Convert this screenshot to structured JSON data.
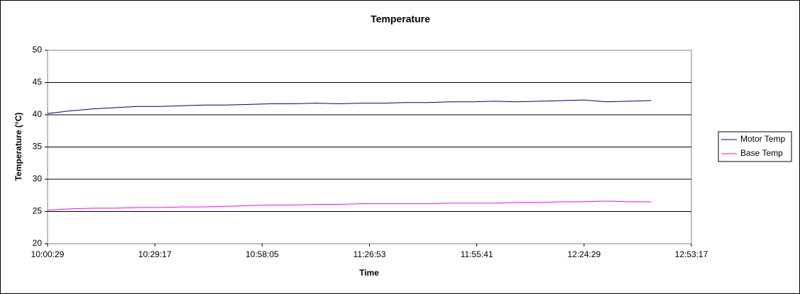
{
  "chart_data": {
    "type": "line",
    "title": "Temperature",
    "x_label": "Time",
    "y_label": "Temperature (°C)",
    "x": [
      "10:00:29",
      "10:06:29",
      "10:12:29",
      "10:18:29",
      "10:24:29",
      "10:30:29",
      "10:36:29",
      "10:42:29",
      "10:48:29",
      "10:54:29",
      "11:00:29",
      "11:06:29",
      "11:12:29",
      "11:18:29",
      "11:24:29",
      "11:30:29",
      "11:36:29",
      "11:42:29",
      "11:48:29",
      "11:54:29",
      "12:00:29",
      "12:06:29",
      "12:12:29",
      "12:18:29",
      "12:24:29",
      "12:30:29",
      "12:36:29",
      "12:42:29"
    ],
    "series": [
      {
        "name": "Motor Temp",
        "color": "#000080",
        "values": [
          40.2,
          40.6,
          40.9,
          41.1,
          41.3,
          41.3,
          41.4,
          41.5,
          41.5,
          41.6,
          41.7,
          41.7,
          41.8,
          41.7,
          41.8,
          41.8,
          41.9,
          41.9,
          42.0,
          42.0,
          42.1,
          42.0,
          42.1,
          42.2,
          42.3,
          42.0,
          42.1,
          42.2
        ]
      },
      {
        "name": "Base Temp",
        "color": "#ff00ff",
        "values": [
          25.2,
          25.4,
          25.5,
          25.5,
          25.6,
          25.6,
          25.7,
          25.7,
          25.8,
          25.9,
          26.0,
          26.0,
          26.1,
          26.1,
          26.2,
          26.2,
          26.2,
          26.2,
          26.3,
          26.3,
          26.3,
          26.4,
          26.4,
          26.5,
          26.5,
          26.6,
          26.5,
          26.5
        ]
      }
    ],
    "xlim": [
      "10:00:29",
      "12:53:17"
    ],
    "xticks": [
      "10:00:29",
      "10:29:17",
      "10:58:05",
      "11:26:53",
      "11:55:41",
      "12:24:29",
      "12:53:17"
    ],
    "ylim": [
      20,
      50
    ],
    "yticks": [
      20,
      25,
      30,
      35,
      40,
      45,
      50
    ],
    "grid": true,
    "legend": "right"
  }
}
